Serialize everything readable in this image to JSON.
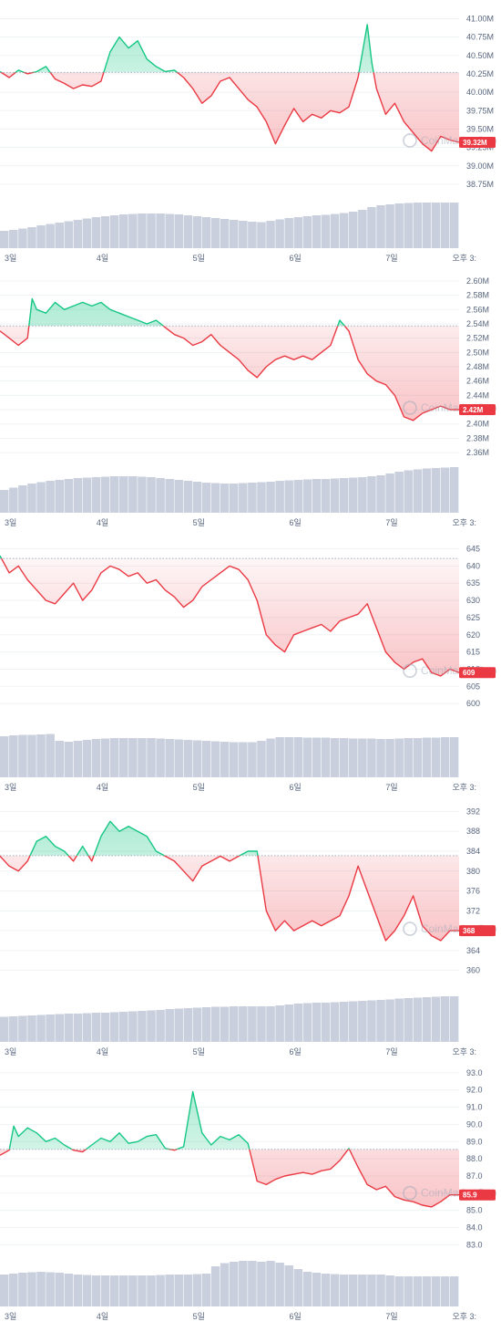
{
  "colors": {
    "up": "#16c784",
    "down": "#ea3943",
    "volume": "#c9cfdd",
    "grid": "#eff2f5",
    "baseline": "#a6b0c3",
    "tick": "#58667e"
  },
  "watermark": "CoinMarketCap",
  "chart_data": [
    {
      "type": "line",
      "ylim": [
        38.65,
        41.08
      ],
      "y_ticks": [
        "41.00M",
        "40.75M",
        "40.50M",
        "40.25M",
        "40.00M",
        "39.75M",
        "39.50M",
        "39.25M",
        "39.00M",
        "38.75M"
      ],
      "y_tick_values": [
        41.0,
        40.75,
        40.5,
        40.25,
        40.0,
        39.75,
        39.5,
        39.25,
        39.0,
        38.75
      ],
      "x_ticks": [
        "3일",
        "4일",
        "5일",
        "6일",
        "7일",
        "오후 3:"
      ],
      "baseline": 40.27,
      "current_label": "39.32M",
      "series": [
        {
          "x": [
            0,
            0.02,
            0.04,
            0.06,
            0.08,
            0.1,
            0.12,
            0.14,
            0.16,
            0.18,
            0.2,
            0.22,
            0.24,
            0.26,
            0.28,
            0.3,
            0.32,
            0.34,
            0.36,
            0.38,
            0.4,
            0.42,
            0.44,
            0.46,
            0.48,
            0.5,
            0.52,
            0.54,
            0.56,
            0.58,
            0.6,
            0.62,
            0.64,
            0.66,
            0.68,
            0.7,
            0.72,
            0.74,
            0.76,
            0.78,
            0.8,
            0.81,
            0.82,
            0.84,
            0.86,
            0.88,
            0.9,
            0.92,
            0.94,
            0.96,
            0.98,
            1
          ],
          "values": [
            40.28,
            40.2,
            40.3,
            40.25,
            40.28,
            40.35,
            40.18,
            40.12,
            40.05,
            40.1,
            40.08,
            40.15,
            40.55,
            40.75,
            40.6,
            40.7,
            40.45,
            40.35,
            40.28,
            40.3,
            40.2,
            40.05,
            39.85,
            39.95,
            40.15,
            40.2,
            40.05,
            39.9,
            39.8,
            39.6,
            39.3,
            39.55,
            39.78,
            39.6,
            39.7,
            39.65,
            39.75,
            39.72,
            39.8,
            40.2,
            40.92,
            40.4,
            40.05,
            39.7,
            39.85,
            39.6,
            39.45,
            39.3,
            39.2,
            39.4,
            39.35,
            39.32
          ]
        }
      ],
      "volume": [
        0.38,
        0.4,
        0.43,
        0.46,
        0.5,
        0.53,
        0.56,
        0.59,
        0.62,
        0.65,
        0.68,
        0.7,
        0.72,
        0.74,
        0.75,
        0.76,
        0.76,
        0.76,
        0.75,
        0.74,
        0.72,
        0.7,
        0.68,
        0.66,
        0.64,
        0.62,
        0.6,
        0.58,
        0.57,
        0.6,
        0.63,
        0.66,
        0.68,
        0.7,
        0.72,
        0.73,
        0.75,
        0.77,
        0.8,
        0.84,
        0.9,
        0.94,
        0.96,
        0.98,
        0.99,
        1.0,
        1.0,
        1.0,
        1.0,
        1.0
      ]
    },
    {
      "type": "line",
      "ylim": [
        2.355,
        2.605
      ],
      "y_ticks": [
        "2.60M",
        "2.58M",
        "2.56M",
        "2.54M",
        "2.52M",
        "2.50M",
        "2.48M",
        "2.46M",
        "2.44M",
        "2.42M",
        "2.40M",
        "2.38M",
        "2.36M"
      ],
      "y_tick_values": [
        2.6,
        2.58,
        2.56,
        2.54,
        2.52,
        2.5,
        2.48,
        2.46,
        2.44,
        2.42,
        2.4,
        2.38,
        2.36
      ],
      "x_ticks": [
        "3일",
        "4일",
        "5일",
        "6일",
        "7일",
        "오후 3:"
      ],
      "baseline": 2.537,
      "current_label": "2.42M",
      "series": [
        {
          "x": [
            0,
            0.02,
            0.04,
            0.06,
            0.07,
            0.08,
            0.1,
            0.12,
            0.14,
            0.16,
            0.18,
            0.2,
            0.22,
            0.24,
            0.26,
            0.28,
            0.3,
            0.32,
            0.34,
            0.36,
            0.38,
            0.4,
            0.42,
            0.44,
            0.46,
            0.48,
            0.5,
            0.52,
            0.54,
            0.56,
            0.58,
            0.6,
            0.62,
            0.64,
            0.66,
            0.68,
            0.7,
            0.72,
            0.74,
            0.76,
            0.78,
            0.8,
            0.82,
            0.84,
            0.86,
            0.88,
            0.9,
            0.92,
            0.94,
            0.96,
            0.98,
            1
          ],
          "values": [
            2.53,
            2.52,
            2.51,
            2.52,
            2.575,
            2.56,
            2.555,
            2.57,
            2.56,
            2.565,
            2.57,
            2.565,
            2.57,
            2.56,
            2.555,
            2.55,
            2.545,
            2.54,
            2.545,
            2.535,
            2.525,
            2.52,
            2.51,
            2.515,
            2.525,
            2.51,
            2.5,
            2.49,
            2.475,
            2.465,
            2.48,
            2.49,
            2.495,
            2.49,
            2.495,
            2.49,
            2.5,
            2.51,
            2.545,
            2.53,
            2.49,
            2.47,
            2.46,
            2.455,
            2.44,
            2.41,
            2.405,
            2.415,
            2.42,
            2.425,
            2.42,
            2.42
          ]
        }
      ],
      "volume": [
        0.5,
        0.55,
        0.6,
        0.64,
        0.67,
        0.7,
        0.72,
        0.74,
        0.76,
        0.77,
        0.78,
        0.79,
        0.8,
        0.8,
        0.8,
        0.79,
        0.78,
        0.76,
        0.74,
        0.72,
        0.7,
        0.68,
        0.66,
        0.65,
        0.64,
        0.64,
        0.65,
        0.66,
        0.67,
        0.68,
        0.7,
        0.71,
        0.72,
        0.73,
        0.74,
        0.74,
        0.75,
        0.76,
        0.77,
        0.78,
        0.8,
        0.82,
        0.86,
        0.9,
        0.93,
        0.95,
        0.97,
        0.98,
        0.99,
        1.0
      ]
    },
    {
      "type": "line",
      "ylim": [
        595,
        647
      ],
      "y_ticks": [
        "645",
        "640",
        "635",
        "630",
        "625",
        "620",
        "615",
        "610",
        "605",
        "600"
      ],
      "y_tick_values": [
        645,
        640,
        635,
        630,
        625,
        620,
        615,
        610,
        605,
        600
      ],
      "x_ticks": [
        "3일",
        "4일",
        "5일",
        "6일",
        "7일",
        "오후 3:"
      ],
      "baseline": 642.2,
      "current_label": "609",
      "series": [
        {
          "x": [
            0,
            0.02,
            0.04,
            0.06,
            0.08,
            0.1,
            0.12,
            0.14,
            0.16,
            0.18,
            0.2,
            0.22,
            0.24,
            0.26,
            0.28,
            0.3,
            0.32,
            0.34,
            0.36,
            0.38,
            0.4,
            0.42,
            0.44,
            0.46,
            0.48,
            0.5,
            0.52,
            0.54,
            0.56,
            0.58,
            0.6,
            0.62,
            0.64,
            0.66,
            0.68,
            0.7,
            0.72,
            0.74,
            0.76,
            0.78,
            0.8,
            0.82,
            0.84,
            0.86,
            0.88,
            0.9,
            0.92,
            0.94,
            0.96,
            0.98,
            1
          ],
          "values": [
            643,
            638,
            640,
            636,
            633,
            630,
            629,
            632,
            635,
            630,
            633,
            638,
            640,
            639,
            637,
            638,
            635,
            636,
            633,
            631,
            628,
            630,
            634,
            636,
            638,
            640,
            639,
            636,
            630,
            620,
            617,
            615,
            620,
            621,
            622,
            623,
            621,
            624,
            625,
            626,
            629,
            622,
            615,
            612,
            610,
            612,
            613,
            609,
            608,
            610,
            609
          ]
        }
      ],
      "volume": [
        0.9,
        0.92,
        0.93,
        0.93,
        0.94,
        0.95,
        0.8,
        0.78,
        0.8,
        0.82,
        0.84,
        0.85,
        0.86,
        0.86,
        0.86,
        0.86,
        0.86,
        0.85,
        0.84,
        0.83,
        0.82,
        0.81,
        0.8,
        0.79,
        0.78,
        0.77,
        0.77,
        0.77,
        0.8,
        0.85,
        0.88,
        0.88,
        0.88,
        0.87,
        0.87,
        0.87,
        0.86,
        0.86,
        0.85,
        0.85,
        0.85,
        0.84,
        0.84,
        0.85,
        0.86,
        0.86,
        0.87,
        0.87,
        0.88,
        0.88
      ]
    },
    {
      "type": "line",
      "ylim": [
        357,
        393
      ],
      "y_ticks": [
        "392",
        "388",
        "384",
        "380",
        "376",
        "372",
        "368",
        "364",
        "360"
      ],
      "y_tick_values": [
        392,
        388,
        384,
        380,
        376,
        372,
        368,
        364,
        360
      ],
      "x_ticks": [
        "3일",
        "4일",
        "5일",
        "6일",
        "7일",
        "오후 3:"
      ],
      "baseline": 383.1,
      "current_label": "368",
      "series": [
        {
          "x": [
            0,
            0.02,
            0.04,
            0.06,
            0.08,
            0.1,
            0.12,
            0.14,
            0.16,
            0.18,
            0.2,
            0.22,
            0.24,
            0.26,
            0.28,
            0.3,
            0.32,
            0.34,
            0.36,
            0.38,
            0.4,
            0.42,
            0.44,
            0.46,
            0.48,
            0.5,
            0.52,
            0.54,
            0.56,
            0.58,
            0.6,
            0.62,
            0.64,
            0.66,
            0.68,
            0.7,
            0.72,
            0.74,
            0.76,
            0.78,
            0.8,
            0.82,
            0.84,
            0.86,
            0.88,
            0.9,
            0.92,
            0.94,
            0.96,
            0.98,
            1
          ],
          "values": [
            383,
            381,
            380,
            382,
            386,
            387,
            385,
            384,
            382,
            385,
            382,
            387,
            390,
            388,
            389,
            388,
            387,
            384,
            383,
            382,
            380,
            378,
            381,
            382,
            383,
            382,
            383,
            384,
            384,
            372,
            368,
            370,
            368,
            369,
            370,
            369,
            370,
            371,
            375,
            381,
            376,
            371,
            366,
            368,
            371,
            375,
            369,
            367,
            366,
            368,
            368
          ]
        }
      ],
      "volume": [
        0.55,
        0.56,
        0.57,
        0.58,
        0.59,
        0.6,
        0.61,
        0.62,
        0.62,
        0.63,
        0.64,
        0.64,
        0.65,
        0.66,
        0.67,
        0.68,
        0.69,
        0.7,
        0.72,
        0.73,
        0.74,
        0.75,
        0.76,
        0.77,
        0.77,
        0.78,
        0.78,
        0.78,
        0.78,
        0.78,
        0.8,
        0.82,
        0.84,
        0.85,
        0.86,
        0.86,
        0.87,
        0.88,
        0.89,
        0.9,
        0.91,
        0.92,
        0.93,
        0.95,
        0.96,
        0.97,
        0.98,
        0.99,
        1.0,
        1.0
      ]
    },
    {
      "type": "line",
      "ylim": [
        82.7,
        93.1
      ],
      "y_ticks": [
        "93.0",
        "92.0",
        "91.0",
        "90.0",
        "89.0",
        "88.0",
        "87.0",
        "86.0",
        "85.0",
        "84.0",
        "83.0"
      ],
      "y_tick_values": [
        93,
        92,
        91,
        90,
        89,
        88,
        87,
        86,
        85,
        84,
        83
      ],
      "x_ticks": [
        "3일",
        "4일",
        "5일",
        "6일",
        "7일",
        "오후 3:"
      ],
      "baseline": 88.55,
      "current_label": "85.9",
      "series": [
        {
          "x": [
            0,
            0.02,
            0.03,
            0.04,
            0.06,
            0.08,
            0.1,
            0.12,
            0.14,
            0.16,
            0.18,
            0.2,
            0.22,
            0.24,
            0.26,
            0.28,
            0.3,
            0.32,
            0.34,
            0.36,
            0.38,
            0.4,
            0.42,
            0.44,
            0.46,
            0.48,
            0.5,
            0.52,
            0.54,
            0.56,
            0.58,
            0.6,
            0.62,
            0.64,
            0.66,
            0.68,
            0.7,
            0.72,
            0.74,
            0.76,
            0.78,
            0.8,
            0.82,
            0.84,
            0.86,
            0.88,
            0.9,
            0.92,
            0.94,
            0.96,
            0.98,
            1
          ],
          "values": [
            88.2,
            88.5,
            89.9,
            89.3,
            89.8,
            89.5,
            89.0,
            89.2,
            88.8,
            88.5,
            88.4,
            88.8,
            89.2,
            89.0,
            89.5,
            88.9,
            89.0,
            89.3,
            89.4,
            88.6,
            88.5,
            88.7,
            91.9,
            89.5,
            88.8,
            89.3,
            89.1,
            89.4,
            88.9,
            86.7,
            86.5,
            86.8,
            87.0,
            87.1,
            87.2,
            87.1,
            87.3,
            87.4,
            87.9,
            88.6,
            87.5,
            86.5,
            86.2,
            86.4,
            85.8,
            85.6,
            85.5,
            85.3,
            85.2,
            85.5,
            85.9,
            85.9
          ]
        }
      ],
      "volume": [
        0.7,
        0.72,
        0.74,
        0.75,
        0.76,
        0.75,
        0.74,
        0.72,
        0.7,
        0.69,
        0.68,
        0.68,
        0.68,
        0.68,
        0.68,
        0.68,
        0.68,
        0.69,
        0.7,
        0.7,
        0.7,
        0.71,
        0.72,
        0.88,
        0.95,
        0.98,
        1.0,
        1.0,
        0.98,
        1.0,
        0.96,
        0.9,
        0.82,
        0.76,
        0.74,
        0.72,
        0.71,
        0.7,
        0.7,
        0.7,
        0.7,
        0.7,
        0.68,
        0.66,
        0.66,
        0.66,
        0.66,
        0.66,
        0.66,
        0.66
      ]
    }
  ]
}
